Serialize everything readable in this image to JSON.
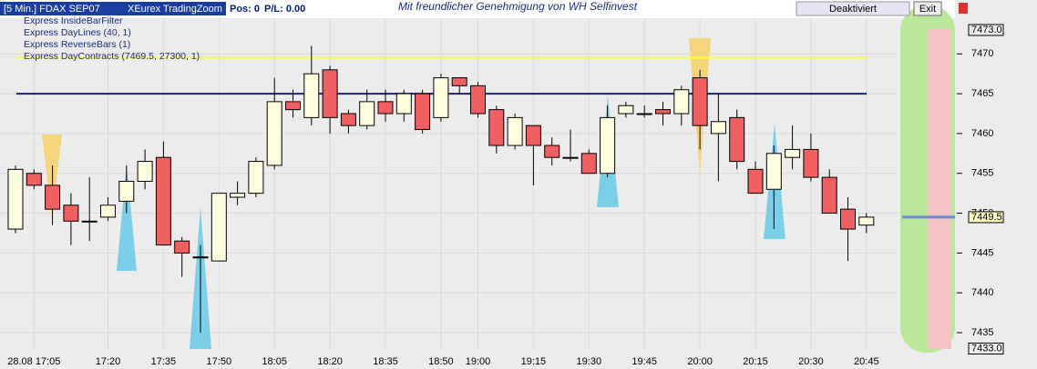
{
  "header": {
    "instrument": "[5 Min.] FDAX SEP07",
    "exchange": "XEurex TradingZoom",
    "position": "Pos: 0",
    "pnl": "P/L: 0.00",
    "credit": "Mit freundlicher Genehmigung von WH Selfinvest",
    "status_button": "Deaktiviert",
    "exit_button": "Exit"
  },
  "indicators": [
    "Express InsideBarFilter",
    "Express DayLines (40, 1)",
    "Express ReverseBars (1)",
    "Express DayContracts (7469.5, 27300, 1)"
  ],
  "chart_data": {
    "type": "candlestick",
    "categories": [
      null,
      "28.08 17:05",
      null,
      null,
      null,
      "17:20",
      null,
      null,
      "17:35",
      null,
      null,
      "17:50",
      null,
      null,
      "18:05",
      null,
      null,
      "18:20",
      null,
      null,
      "18:35",
      null,
      null,
      "18:50",
      null,
      "19:00",
      null,
      null,
      "19:15",
      null,
      null,
      "19:30",
      null,
      null,
      "19:45",
      null,
      null,
      "20:00",
      null,
      null,
      "20:15",
      null,
      null,
      "20:30",
      null,
      null,
      "20:45"
    ],
    "open": [
      7448,
      7455,
      7453.5,
      7451,
      7449,
      7449.5,
      7451.5,
      7454,
      7457,
      7446.5,
      7444.5,
      7444,
      7452,
      7452.5,
      7456,
      7464,
      7462,
      7468,
      7462.5,
      7461,
      7464,
      7462.5,
      7465,
      7462,
      7467,
      7466,
      7463,
      7458.5,
      7461,
      7458.5,
      7457,
      7457.5,
      7455,
      7462.5,
      7462.5,
      7463,
      7462.5,
      7467,
      7460,
      7462,
      7455.5,
      7453,
      7457,
      7458,
      7454.5,
      7450.5,
      7448.5
    ],
    "high": [
      7456,
      7455.5,
      7456,
      7452.5,
      7454.5,
      7452,
      7456,
      7458,
      7459,
      7447,
      7446,
      7452.5,
      7454,
      7457,
      7467,
      7465.5,
      7471,
      7468.5,
      7463,
      7465.5,
      7465.5,
      7465.5,
      7465.5,
      7467.5,
      7467,
      7466.5,
      7463.5,
      7462.5,
      7461,
      7459.5,
      7460.5,
      7458,
      7463.5,
      7464,
      7463.5,
      7464,
      7466,
      7468,
      7465,
      7463,
      7456.5,
      7458.5,
      7461,
      7460,
      7455.5,
      7452,
      7450
    ],
    "low": [
      7447.5,
      7453,
      7448.5,
      7446,
      7446.5,
      7449,
      7450,
      7453,
      7446,
      7442,
      7435,
      7444,
      7451,
      7452,
      7455.5,
      7462,
      7461,
      7460,
      7460,
      7460.5,
      7461.5,
      7461.5,
      7460,
      7461.5,
      7465,
      7462,
      7457.5,
      7458,
      7453.5,
      7456,
      7456.5,
      7455,
      7454.5,
      7462,
      7462,
      7461,
      7461,
      7458,
      7454,
      7455.5,
      7452.5,
      7448,
      7455.5,
      7454,
      7450,
      7444,
      7447.5
    ],
    "close": [
      7455.5,
      7453.5,
      7450.5,
      7449,
      7449,
      7451,
      7454,
      7456.5,
      7446,
      7445,
      7444.5,
      7452.5,
      7452.5,
      7456.5,
      7464,
      7463,
      7467.5,
      7462,
      7461,
      7464,
      7462.5,
      7465,
      7460.5,
      7467,
      7466,
      7462.5,
      7458.5,
      7462,
      7458.5,
      7457,
      7457,
      7455,
      7462,
      7463.5,
      7462.5,
      7462.5,
      7465.5,
      7461,
      7461.5,
      7456.5,
      7452.5,
      7457.5,
      7458,
      7454.5,
      7450,
      7448,
      7449.5
    ],
    "up_color": "#ffffe0",
    "down_color": "#f06060",
    "ylim": [
      7433,
      7473
    ],
    "yticks": [
      7435,
      7440,
      7445,
      7450,
      7455,
      7460,
      7465,
      7470
    ],
    "price_markers": [
      {
        "value": 7473,
        "label": "7473.0"
      },
      {
        "value": 7449.5,
        "label": "7449.5"
      },
      {
        "value": 7433,
        "label": "7433.0"
      }
    ],
    "lines": [
      {
        "value": 7469.5,
        "color": "#ffff33"
      },
      {
        "value": 7465,
        "color": "#1a237e"
      }
    ]
  }
}
